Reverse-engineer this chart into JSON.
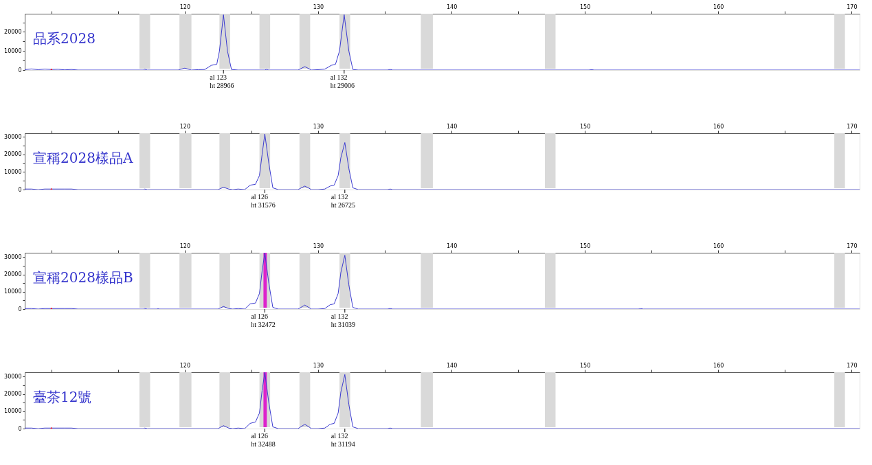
{
  "chart_data": [
    {
      "type": "line",
      "title": "品系2028",
      "xlim": [
        108,
        170.6
      ],
      "ylim": [
        0,
        29500
      ],
      "xticks": [
        {
          "value": 110,
          "label": null
        },
        {
          "value": 115,
          "label": null
        },
        120,
        {
          "value": 125,
          "label": null
        },
        130,
        {
          "value": 135,
          "label": null
        },
        140,
        {
          "value": 145,
          "label": null
        },
        150,
        {
          "value": 155,
          "label": null
        },
        160,
        {
          "value": 165,
          "label": null
        },
        170
      ],
      "yticks": [
        0,
        {
          "value": 5000,
          "label": null
        },
        10000,
        {
          "value": 15000,
          "label": null
        },
        20000,
        {
          "value": 25000,
          "label": null
        }
      ],
      "grid": false,
      "series": [
        {
          "color": "#3a3ad0",
          "x": [
            108,
            108.5,
            109,
            109.5,
            110,
            110.5,
            111,
            111.5,
            112,
            116.9,
            117.0,
            117.2,
            119.5,
            120.0,
            120.5,
            121,
            121.5,
            122,
            122.4,
            122.6,
            122.9,
            123.2,
            123.5,
            124,
            126,
            126.1,
            126.3,
            128.5,
            129.0,
            129.5,
            130,
            130.5,
            131.0,
            131.3,
            131.6,
            131.95,
            132.3,
            132.6,
            133,
            135.2,
            135.4,
            135.6,
            150.3,
            150.5,
            150.7,
            170.6
          ],
          "values": [
            200,
            600,
            200,
            500,
            300,
            400,
            100,
            300,
            0,
            0,
            400,
            0,
            0,
            1000,
            0,
            200,
            300,
            2500,
            3000,
            10000,
            28966,
            10000,
            300,
            0,
            0,
            300,
            0,
            0,
            1800,
            0,
            200,
            500,
            2500,
            3000,
            10000,
            29006,
            10000,
            300,
            0,
            0,
            300,
            0,
            0,
            200,
            0,
            0
          ]
        },
        {
          "type": "scatter",
          "marker": "triangle",
          "color": "#ff0000",
          "x": [
            110
          ],
          "values": [
            0
          ]
        }
      ],
      "bands": [
        {
          "axis": "x",
          "from": 116.6,
          "to": 117.4
        },
        {
          "axis": "x",
          "from": 119.6,
          "to": 120.5
        },
        {
          "axis": "x",
          "from": 122.6,
          "to": 123.4
        },
        {
          "axis": "x",
          "from": 125.6,
          "to": 126.4
        },
        {
          "axis": "x",
          "from": 128.6,
          "to": 129.4
        },
        {
          "axis": "x",
          "from": 131.6,
          "to": 132.4
        },
        {
          "axis": "x",
          "from": 137.7,
          "to": 138.6
        },
        {
          "axis": "x",
          "from": 147.0,
          "to": 147.8
        },
        {
          "axis": "x",
          "from": 168.7,
          "to": 169.5
        }
      ],
      "annotations": [
        "al 123\nht 28966",
        "al 132\nht 29006"
      ]
    },
    {
      "type": "line",
      "title": "宣稱2028樣品A",
      "xlim": [
        108,
        170.6
      ],
      "ylim": [
        0,
        32000
      ],
      "xticks": [
        {
          "value": 110,
          "label": null
        },
        {
          "value": 115,
          "label": null
        },
        120,
        {
          "value": 125,
          "label": null
        },
        130,
        {
          "value": 135,
          "label": null
        },
        140,
        {
          "value": 145,
          "label": null
        },
        150,
        {
          "value": 155,
          "label": null
        },
        160,
        {
          "value": 165,
          "label": null
        },
        170
      ],
      "yticks": [
        0,
        {
          "value": 5000,
          "label": null
        },
        10000,
        {
          "value": 15000,
          "label": null
        },
        20000,
        {
          "value": 25000,
          "label": null
        },
        30000
      ],
      "grid": false,
      "series": [
        {
          "color": "#3a3ad0",
          "x": [
            108,
            108.5,
            109,
            109.5,
            110,
            111,
            111.5,
            112,
            116.9,
            117.0,
            117.2,
            122.5,
            122.9,
            123.3,
            123.6,
            124,
            124.5,
            124.9,
            125.3,
            125.6,
            125.8,
            126.0,
            126.3,
            126.6,
            127,
            128.5,
            129.0,
            129.5,
            130,
            130.5,
            130.9,
            131.2,
            131.5,
            131.7,
            132.0,
            132.3,
            132.6,
            133,
            135.2,
            135.4,
            135.6,
            170.6
          ],
          "values": [
            300,
            300,
            0,
            300,
            300,
            300,
            300,
            0,
            0,
            300,
            0,
            0,
            1300,
            300,
            0,
            300,
            0,
            2500,
            3000,
            8000,
            20000,
            31576,
            15000,
            1000,
            0,
            0,
            2000,
            0,
            0,
            300,
            2000,
            2500,
            8000,
            18000,
            26725,
            12000,
            1000,
            0,
            0,
            300,
            0,
            0
          ]
        },
        {
          "type": "scatter",
          "marker": "triangle",
          "color": "#ff0000",
          "x": [
            110
          ],
          "values": [
            0
          ]
        }
      ],
      "bands": [
        {
          "axis": "x",
          "from": 116.6,
          "to": 117.4
        },
        {
          "axis": "x",
          "from": 119.6,
          "to": 120.5
        },
        {
          "axis": "x",
          "from": 122.6,
          "to": 123.4
        },
        {
          "axis": "x",
          "from": 125.6,
          "to": 126.4
        },
        {
          "axis": "x",
          "from": 128.6,
          "to": 129.4
        },
        {
          "axis": "x",
          "from": 131.6,
          "to": 132.4
        },
        {
          "axis": "x",
          "from": 137.7,
          "to": 138.6
        },
        {
          "axis": "x",
          "from": 147.0,
          "to": 147.8
        },
        {
          "axis": "x",
          "from": 168.7,
          "to": 169.5
        }
      ],
      "annotations": [
        "al 126\nht 31576",
        "al 132\nht 26725"
      ]
    },
    {
      "type": "line",
      "title": "宣稱2028樣品B",
      "xlim": [
        108,
        170.6
      ],
      "ylim": [
        0,
        32500
      ],
      "xticks": [
        {
          "value": 110,
          "label": null
        },
        {
          "value": 115,
          "label": null
        },
        120,
        {
          "value": 125,
          "label": null
        },
        130,
        {
          "value": 135,
          "label": null
        },
        140,
        {
          "value": 145,
          "label": null
        },
        150,
        {
          "value": 155,
          "label": null
        },
        160,
        {
          "value": 165,
          "label": null
        },
        170
      ],
      "yticks": [
        0,
        {
          "value": 5000,
          "label": null
        },
        10000,
        {
          "value": 15000,
          "label": null
        },
        20000,
        {
          "value": 25000,
          "label": null
        },
        30000
      ],
      "grid": false,
      "series": [
        {
          "color": "#3a3ad0",
          "x": [
            108,
            108.5,
            109,
            109.5,
            110,
            111,
            111.5,
            112,
            116.9,
            117.0,
            117.2,
            117.9,
            118.0,
            118.1,
            122.5,
            122.9,
            123.3,
            123.6,
            124,
            124.5,
            124.9,
            125.3,
            125.6,
            125.8,
            126.0,
            126.3,
            126.6,
            127,
            128.5,
            129.0,
            129.5,
            130,
            130.5,
            130.9,
            131.2,
            131.5,
            131.7,
            132.0,
            132.3,
            132.6,
            133,
            135.2,
            135.4,
            135.6,
            154.0,
            154.2,
            154.4,
            170.6
          ],
          "values": [
            300,
            300,
            0,
            300,
            300,
            300,
            300,
            0,
            0,
            300,
            0,
            0,
            200,
            0,
            0,
            1500,
            300,
            0,
            300,
            0,
            3000,
            3500,
            9000,
            22000,
            32472,
            15000,
            1000,
            0,
            0,
            2300,
            0,
            0,
            300,
            2500,
            3000,
            9000,
            21000,
            31039,
            14000,
            1000,
            0,
            0,
            300,
            0,
            0,
            200,
            0,
            0
          ]
        },
        {
          "type": "scatter",
          "marker": "triangle",
          "color": "#ff0000",
          "x": [
            110
          ],
          "values": [
            0
          ]
        }
      ],
      "bands": [
        {
          "axis": "x",
          "from": 116.6,
          "to": 117.4
        },
        {
          "axis": "x",
          "from": 119.6,
          "to": 120.5
        },
        {
          "axis": "x",
          "from": 122.6,
          "to": 123.4
        },
        {
          "axis": "x",
          "from": 125.6,
          "to": 126.4
        },
        {
          "axis": "x",
          "from": 128.6,
          "to": 129.4
        },
        {
          "axis": "x",
          "from": 131.6,
          "to": 132.4
        },
        {
          "axis": "x",
          "from": 137.7,
          "to": 138.6
        },
        {
          "axis": "x",
          "from": 147.0,
          "to": 147.8
        },
        {
          "axis": "x",
          "from": 168.7,
          "to": 169.5
        },
        {
          "axis": "x",
          "from": 125.9,
          "to": 126.15,
          "color": "#dd22cc"
        }
      ],
      "annotations": [
        "al 126\nht 32472",
        "al 132\nht 31039"
      ]
    },
    {
      "type": "line",
      "title": "臺茶12號",
      "xlim": [
        108,
        170.6
      ],
      "ylim": [
        0,
        32500
      ],
      "xticks": [
        {
          "value": 110,
          "label": null
        },
        {
          "value": 115,
          "label": null
        },
        120,
        {
          "value": 125,
          "label": null
        },
        130,
        {
          "value": 135,
          "label": null
        },
        140,
        {
          "value": 145,
          "label": null
        },
        150,
        {
          "value": 155,
          "label": null
        },
        160,
        {
          "value": 165,
          "label": null
        },
        170
      ],
      "yticks": [
        0,
        {
          "value": 5000,
          "label": null
        },
        10000,
        {
          "value": 15000,
          "label": null
        },
        20000,
        {
          "value": 25000,
          "label": null
        },
        30000
      ],
      "grid": false,
      "series": [
        {
          "color": "#3a3ad0",
          "x": [
            108,
            108.5,
            109,
            109.5,
            110,
            111,
            111.5,
            112,
            116.9,
            117.0,
            117.2,
            122.5,
            122.9,
            123.3,
            123.6,
            124,
            124.5,
            124.9,
            125.3,
            125.6,
            125.8,
            126.0,
            126.3,
            126.6,
            127,
            128.5,
            129.0,
            129.5,
            130,
            130.5,
            130.9,
            131.2,
            131.5,
            131.7,
            132.0,
            132.3,
            132.6,
            133,
            135.2,
            135.4,
            135.6,
            170.6
          ],
          "values": [
            300,
            300,
            0,
            300,
            300,
            300,
            300,
            0,
            0,
            300,
            0,
            0,
            1700,
            300,
            0,
            300,
            0,
            3000,
            3800,
            9000,
            22000,
            32488,
            15000,
            1000,
            0,
            0,
            2500,
            0,
            0,
            300,
            2500,
            3000,
            9000,
            21000,
            31194,
            14000,
            1000,
            0,
            0,
            300,
            0,
            0
          ]
        },
        {
          "type": "scatter",
          "marker": "triangle",
          "color": "#ff0000",
          "x": [
            110
          ],
          "values": [
            0
          ]
        }
      ],
      "bands": [
        {
          "axis": "x",
          "from": 116.6,
          "to": 117.4
        },
        {
          "axis": "x",
          "from": 119.6,
          "to": 120.5
        },
        {
          "axis": "x",
          "from": 122.6,
          "to": 123.4
        },
        {
          "axis": "x",
          "from": 125.6,
          "to": 126.4
        },
        {
          "axis": "x",
          "from": 128.6,
          "to": 129.4
        },
        {
          "axis": "x",
          "from": 131.6,
          "to": 132.4
        },
        {
          "axis": "x",
          "from": 137.7,
          "to": 138.6
        },
        {
          "axis": "x",
          "from": 147.0,
          "to": 147.8
        },
        {
          "axis": "x",
          "from": 168.7,
          "to": 169.5
        },
        {
          "axis": "x",
          "from": 125.9,
          "to": 126.15,
          "color": "#dd22cc"
        }
      ],
      "annotations": [
        "al 126\nht 32488",
        "al 132\nht 31194"
      ]
    }
  ]
}
